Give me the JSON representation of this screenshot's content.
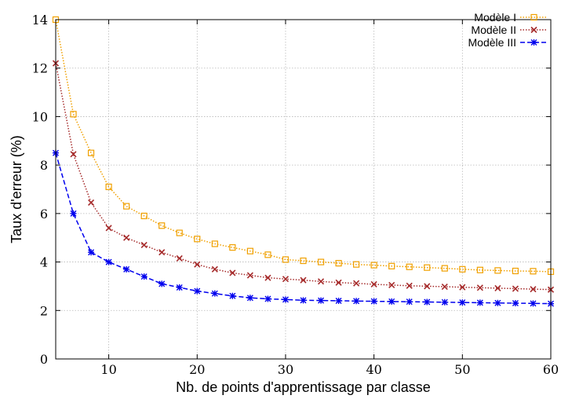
{
  "chart_data": {
    "type": "line",
    "title": "",
    "xlabel": "Nb. de points d'apprentissage par classe",
    "ylabel": "Taux d'erreur (%)",
    "xlim": [
      4,
      60
    ],
    "ylim": [
      0,
      14
    ],
    "xticks": [
      10,
      20,
      30,
      40,
      50,
      60
    ],
    "yticks": [
      0,
      2,
      4,
      6,
      8,
      10,
      12,
      14
    ],
    "grid": true,
    "legend_position": "top-right",
    "x": [
      4,
      6,
      8,
      10,
      12,
      14,
      16,
      18,
      20,
      22,
      24,
      26,
      28,
      30,
      32,
      34,
      36,
      38,
      40,
      42,
      44,
      46,
      48,
      50,
      52,
      54,
      56,
      58,
      60
    ],
    "series": [
      {
        "name": "Modèle I",
        "color": "#f0a000",
        "marker": "square",
        "line": "dotted",
        "values": [
          14.0,
          10.1,
          8.5,
          7.1,
          6.3,
          5.9,
          5.5,
          5.2,
          4.95,
          4.75,
          4.6,
          4.45,
          4.3,
          4.1,
          4.05,
          4.0,
          3.95,
          3.9,
          3.87,
          3.83,
          3.8,
          3.77,
          3.74,
          3.7,
          3.67,
          3.65,
          3.63,
          3.62,
          3.6
        ]
      },
      {
        "name": "Modèle II",
        "color": "#a52a2a",
        "marker": "cross",
        "line": "dotted",
        "values": [
          12.2,
          8.45,
          6.45,
          5.4,
          5.0,
          4.7,
          4.4,
          4.15,
          3.9,
          3.7,
          3.55,
          3.45,
          3.35,
          3.3,
          3.25,
          3.2,
          3.15,
          3.12,
          3.08,
          3.05,
          3.02,
          3.0,
          2.98,
          2.96,
          2.94,
          2.92,
          2.9,
          2.88,
          2.86
        ]
      },
      {
        "name": "Modèle III",
        "color": "#0000ee",
        "marker": "star",
        "line": "dashed",
        "values": [
          8.5,
          6.0,
          4.4,
          4.0,
          3.7,
          3.4,
          3.1,
          2.95,
          2.8,
          2.7,
          2.6,
          2.52,
          2.48,
          2.45,
          2.42,
          2.41,
          2.4,
          2.39,
          2.38,
          2.37,
          2.36,
          2.35,
          2.34,
          2.33,
          2.32,
          2.31,
          2.3,
          2.29,
          2.28
        ]
      }
    ]
  }
}
